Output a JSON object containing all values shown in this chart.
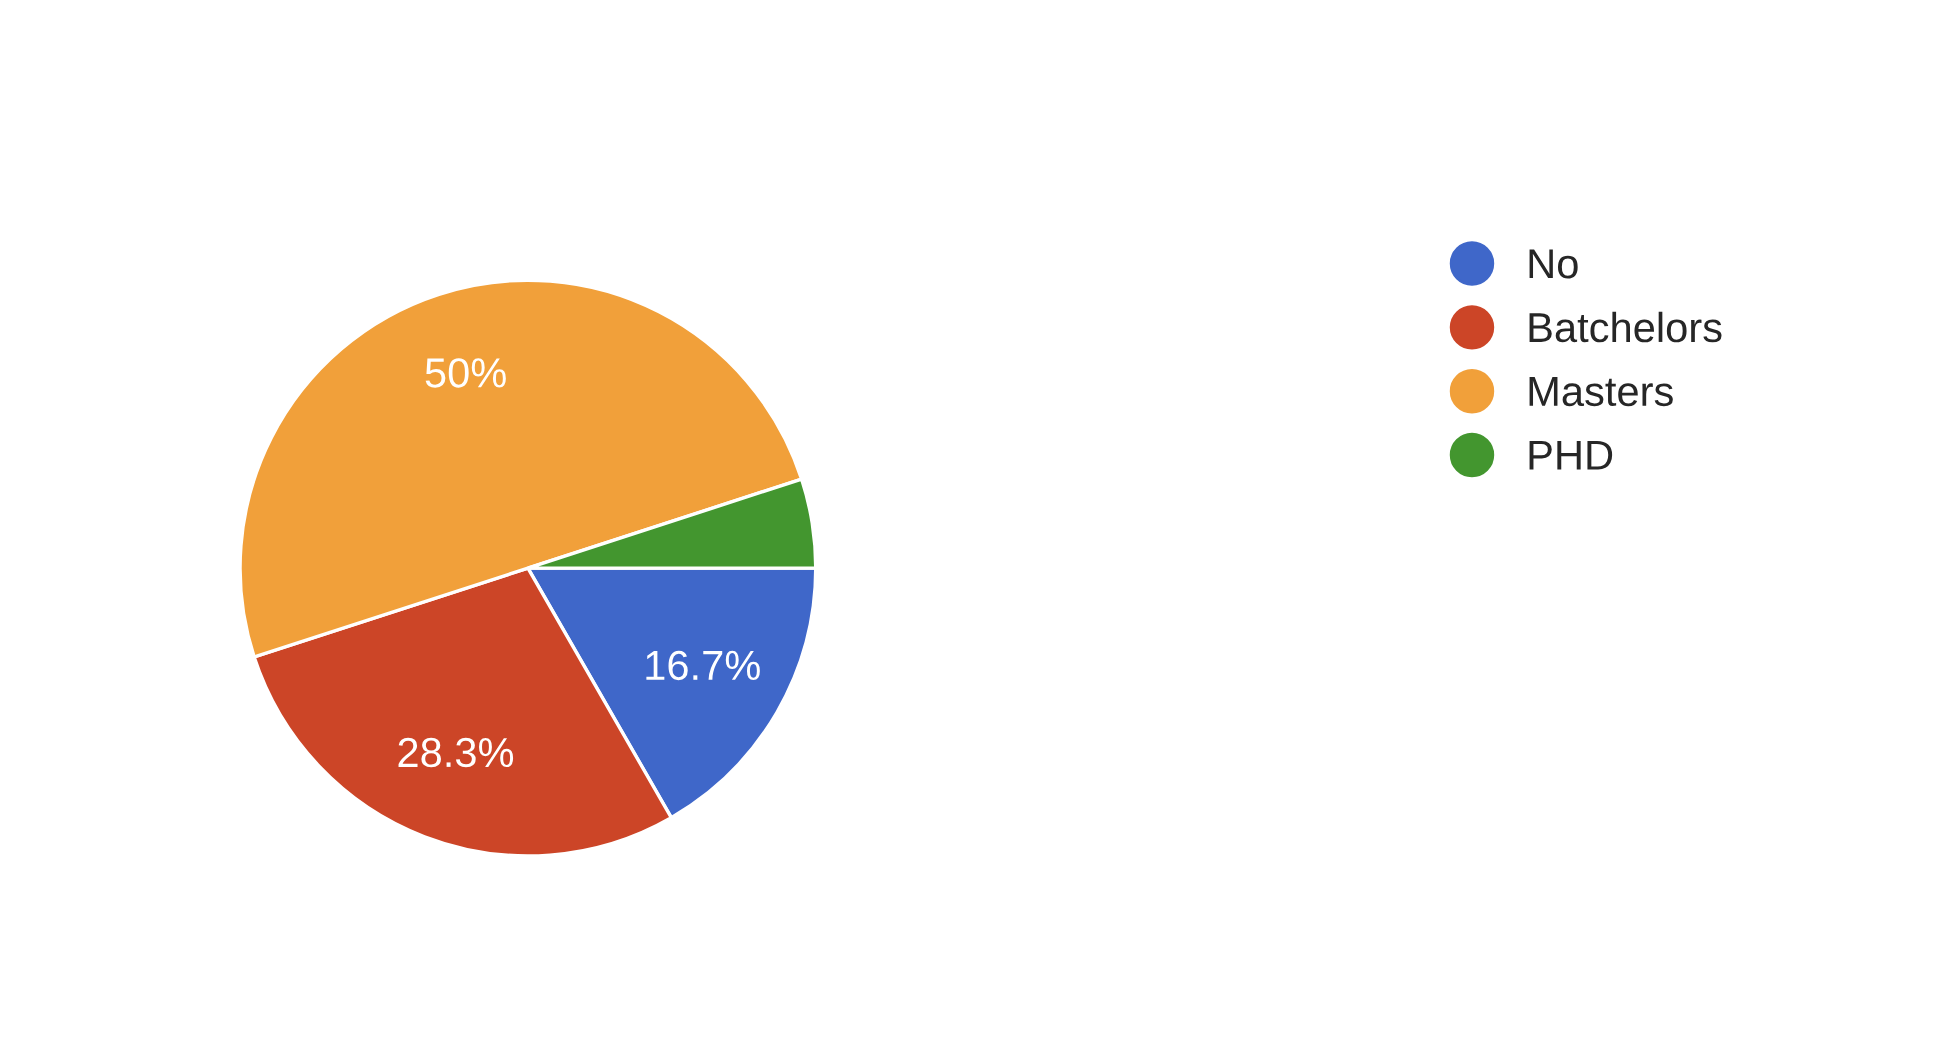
{
  "chart_data": {
    "type": "pie",
    "categories": [
      "No",
      "Batchelors",
      "Masters",
      "PHD"
    ],
    "values": [
      16.7,
      28.3,
      50,
      5
    ],
    "colors": [
      "#3f67c9",
      "#cc4527",
      "#f1a03a",
      "#43962f"
    ],
    "value_labels": [
      "16.7%",
      "28.3%",
      "50%",
      null
    ],
    "legend": "right"
  }
}
